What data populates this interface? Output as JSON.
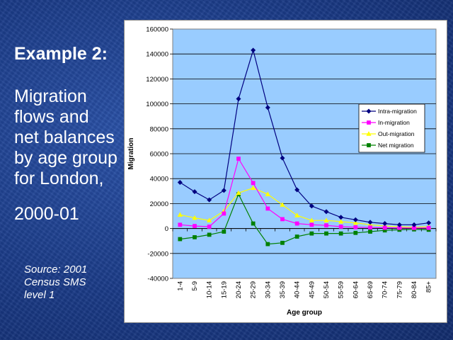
{
  "slide": {
    "heading": "Example 2:",
    "body_lines": [
      "Migration",
      "flows and",
      "net balances",
      "by age group",
      "for London,"
    ],
    "year": "2000-01",
    "source_lines": [
      "Source: 2001",
      "Census SMS",
      "level 1"
    ]
  },
  "chart_data": {
    "type": "line",
    "title": "",
    "xlabel": "Age group",
    "ylabel": "Migration",
    "ylim": [
      -40000,
      160000
    ],
    "yticks": [
      -40000,
      -20000,
      0,
      20000,
      40000,
      60000,
      80000,
      100000,
      120000,
      140000,
      160000
    ],
    "grid": true,
    "legend_position": "right",
    "plot_background": "#99ccff",
    "categories": [
      "1-4",
      "5-9",
      "10-14",
      "15-19",
      "20-24",
      "25-29",
      "30-34",
      "35-39",
      "40-44",
      "45-49",
      "50-54",
      "55-59",
      "60-64",
      "65-69",
      "70-74",
      "75-79",
      "80-84",
      "85+"
    ],
    "series": [
      {
        "name": "Intra-migration",
        "color": "#000080",
        "marker": "diamond",
        "values": [
          37000,
          29500,
          23000,
          30500,
          104000,
          143000,
          97000,
          56500,
          31000,
          18000,
          13500,
          9000,
          7000,
          5000,
          4000,
          3000,
          3000,
          4500
        ]
      },
      {
        "name": "In-migration",
        "color": "#ff00ff",
        "marker": "square",
        "values": [
          3000,
          2000,
          1500,
          12000,
          56000,
          36500,
          16000,
          7500,
          4000,
          3000,
          2500,
          1500,
          1000,
          800,
          600,
          500,
          400,
          500
        ]
      },
      {
        "name": "Out-migration",
        "color": "#ffff00",
        "marker": "triangle",
        "values": [
          11000,
          8500,
          6500,
          14000,
          28500,
          32500,
          27500,
          19000,
          10500,
          6500,
          6500,
          5500,
          4500,
          3000,
          2000,
          1500,
          1000,
          1500
        ]
      },
      {
        "name": "Net migration",
        "color": "#008000",
        "marker": "square",
        "values": [
          -8500,
          -7000,
          -5000,
          -2500,
          27500,
          4000,
          -12500,
          -11500,
          -6500,
          -4000,
          -4000,
          -4000,
          -3500,
          -2500,
          -1500,
          -1000,
          -700,
          -1000
        ]
      }
    ]
  }
}
